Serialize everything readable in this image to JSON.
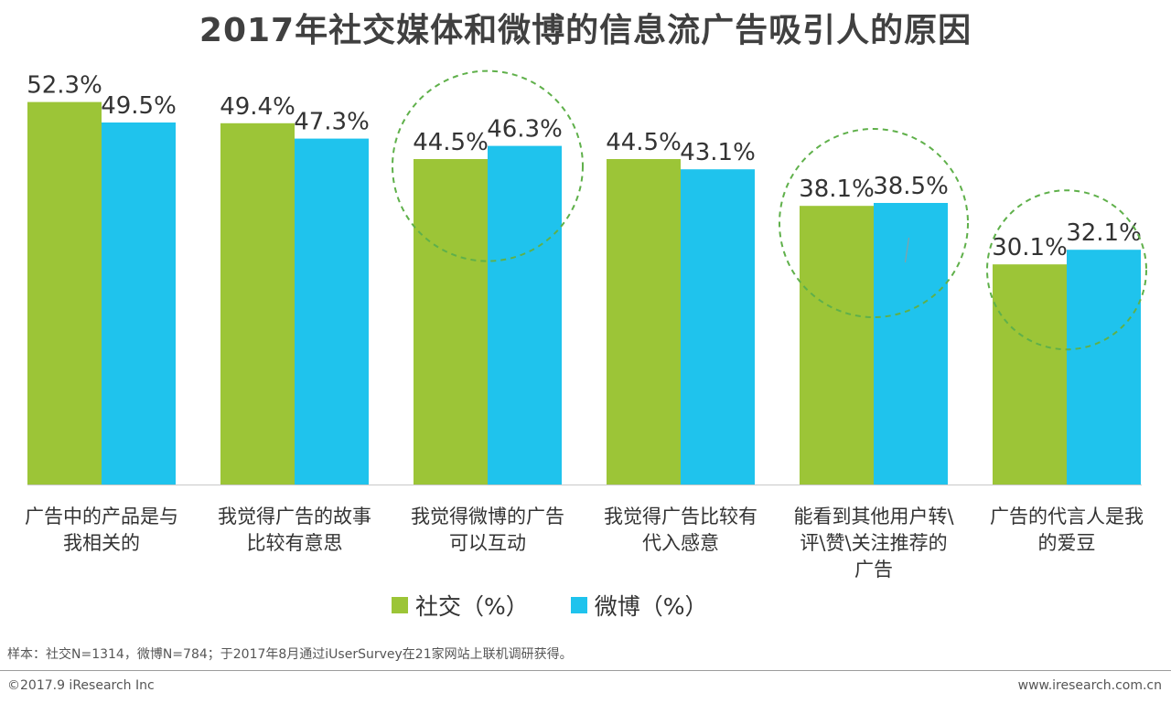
{
  "chart_data": {
    "type": "bar",
    "title": "2017年社交媒体和微博的信息流广告吸引人的原因",
    "categories": [
      "广告中的产品是与\n我相关的",
      "我觉得广告的故事\n比较有意思",
      "我觉得微博的广告\n可以互动",
      "我觉得广告比较有\n代入感意",
      "能看到其他用户转\\\n评\\赞\\关注推荐的\n广告",
      "广告的代言人是我\n的爱豆"
    ],
    "series": [
      {
        "name": "社交（%）",
        "color": "#9cc537",
        "values": [
          52.3,
          49.4,
          44.5,
          44.5,
          38.1,
          30.1
        ],
        "labels": [
          "52.3%",
          "49.4%",
          "44.5%",
          "44.5%",
          "38.1%",
          "30.1%"
        ]
      },
      {
        "name": "微博（%）",
        "color": "#1fc3ed",
        "values": [
          49.5,
          47.3,
          46.3,
          43.1,
          38.5,
          32.1
        ],
        "labels": [
          "49.5%",
          "47.3%",
          "46.3%",
          "43.1%",
          "38.5%",
          "32.1%"
        ]
      }
    ],
    "highlighted_categories": [
      2,
      4,
      5
    ],
    "ylim": [
      0,
      55
    ],
    "xlabel": "",
    "ylabel": "",
    "legend": "bottom-center",
    "grid": false
  },
  "footer": {
    "note": "样本：社交N=1314，微博N=784；于2017年8月通过iUserSurvey在21家网站上联机调研获得。",
    "copyright": "©2017.9 iResearch Inc",
    "website": "www.iresearch.com.cn"
  },
  "colors": {
    "highlight_circle": "#5fb04a"
  }
}
